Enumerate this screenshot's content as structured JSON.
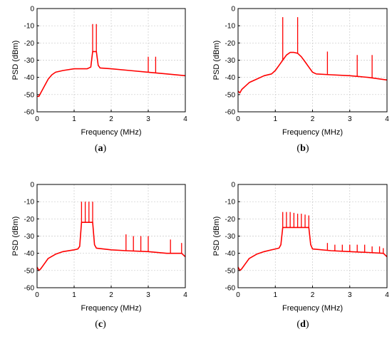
{
  "chart_data": [
    {
      "type": "line",
      "caption_open": "(",
      "caption_letter": "a",
      "caption_close": ")",
      "xlabel": "Frequency (MHz)",
      "ylabel": "PSD (dBm)",
      "xlim": [
        0,
        4
      ],
      "ylim": [
        -60,
        0
      ],
      "xticks": [
        0,
        1,
        2,
        3,
        4
      ],
      "yticks": [
        0,
        -10,
        -20,
        -30,
        -40,
        -50,
        -60
      ],
      "grid": true,
      "color": "#ff0000",
      "baseline": [
        [
          0,
          -51
        ],
        [
          0.05,
          -51
        ],
        [
          0.1,
          -49
        ],
        [
          0.2,
          -45
        ],
        [
          0.3,
          -41
        ],
        [
          0.4,
          -38.5
        ],
        [
          0.5,
          -37
        ],
        [
          0.7,
          -36
        ],
        [
          1.0,
          -35
        ],
        [
          1.35,
          -35
        ],
        [
          1.45,
          -34
        ],
        [
          1.5,
          -25
        ],
        [
          1.6,
          -25
        ],
        [
          1.65,
          -33
        ],
        [
          1.7,
          -34.5
        ],
        [
          2.0,
          -35
        ],
        [
          2.5,
          -36
        ],
        [
          3.0,
          -37
        ],
        [
          3.5,
          -38
        ],
        [
          4.0,
          -39
        ]
      ],
      "spikes": [
        {
          "x": 1.5,
          "y": -9
        },
        {
          "x": 1.6,
          "y": -9
        },
        {
          "x": 3.0,
          "y": -28
        },
        {
          "x": 3.2,
          "y": -28
        }
      ]
    },
    {
      "type": "line",
      "caption_open": "(",
      "caption_letter": "b",
      "caption_close": ")",
      "xlabel": "Frequency (MHz)",
      "ylabel": "PSD (dBm)",
      "xlim": [
        0,
        4
      ],
      "ylim": [
        -60,
        0
      ],
      "xticks": [
        0,
        1,
        2,
        3,
        4
      ],
      "yticks": [
        0,
        -10,
        -20,
        -30,
        -40,
        -50,
        -60
      ],
      "grid": true,
      "color": "#ff0000",
      "baseline": [
        [
          0,
          -48
        ],
        [
          0.05,
          -49
        ],
        [
          0.1,
          -47
        ],
        [
          0.2,
          -45
        ],
        [
          0.3,
          -43
        ],
        [
          0.5,
          -41
        ],
        [
          0.7,
          -39
        ],
        [
          0.9,
          -38
        ],
        [
          1.0,
          -36
        ],
        [
          1.1,
          -33
        ],
        [
          1.2,
          -30
        ],
        [
          1.3,
          -27
        ],
        [
          1.4,
          -25.5
        ],
        [
          1.5,
          -25.5
        ],
        [
          1.6,
          -26
        ],
        [
          1.7,
          -28
        ],
        [
          1.8,
          -31
        ],
        [
          1.9,
          -34
        ],
        [
          2.0,
          -37
        ],
        [
          2.1,
          -38
        ],
        [
          2.5,
          -38.5
        ],
        [
          3.0,
          -39
        ],
        [
          3.5,
          -40
        ],
        [
          4.0,
          -41.5
        ]
      ],
      "spikes": [
        {
          "x": 1.2,
          "y": -5
        },
        {
          "x": 1.6,
          "y": -5
        },
        {
          "x": 2.4,
          "y": -25
        },
        {
          "x": 3.2,
          "y": -27
        },
        {
          "x": 3.6,
          "y": -27
        }
      ]
    },
    {
      "type": "line",
      "caption_open": "(",
      "caption_letter": "c",
      "caption_close": ")",
      "xlabel": "Frequency (MHz)",
      "ylabel": "PSD (dBm)",
      "xlim": [
        0,
        4
      ],
      "ylim": [
        -60,
        0
      ],
      "xticks": [
        0,
        1,
        2,
        3,
        4
      ],
      "yticks": [
        0,
        -10,
        -20,
        -30,
        -40,
        -50,
        -60
      ],
      "grid": true,
      "color": "#ff0000",
      "baseline": [
        [
          0,
          -48
        ],
        [
          0.05,
          -50
        ],
        [
          0.1,
          -49
        ],
        [
          0.2,
          -46
        ],
        [
          0.3,
          -43
        ],
        [
          0.5,
          -40.5
        ],
        [
          0.7,
          -39
        ],
        [
          1.0,
          -38
        ],
        [
          1.1,
          -37.5
        ],
        [
          1.15,
          -36
        ],
        [
          1.2,
          -22
        ],
        [
          1.5,
          -22
        ],
        [
          1.55,
          -35
        ],
        [
          1.6,
          -37
        ],
        [
          2.0,
          -38
        ],
        [
          2.4,
          -38.5
        ],
        [
          3.0,
          -39
        ],
        [
          3.5,
          -40
        ],
        [
          3.9,
          -40
        ],
        [
          4.0,
          -42
        ]
      ],
      "spikes": [
        {
          "x": 1.2,
          "y": -10
        },
        {
          "x": 1.3,
          "y": -10
        },
        {
          "x": 1.4,
          "y": -10
        },
        {
          "x": 1.5,
          "y": -10
        },
        {
          "x": 2.4,
          "y": -29
        },
        {
          "x": 2.6,
          "y": -30
        },
        {
          "x": 2.8,
          "y": -30
        },
        {
          "x": 3.0,
          "y": -30
        },
        {
          "x": 3.6,
          "y": -32
        },
        {
          "x": 3.9,
          "y": -34
        }
      ]
    },
    {
      "type": "line",
      "caption_open": "(",
      "caption_letter": "d",
      "caption_close": ")",
      "xlabel": "Frequency (MHz)",
      "ylabel": "PSD (dBm)",
      "xlim": [
        0,
        4
      ],
      "ylim": [
        -60,
        0
      ],
      "xticks": [
        0,
        1,
        2,
        3,
        4
      ],
      "yticks": [
        0,
        -10,
        -20,
        -30,
        -40,
        -50,
        -60
      ],
      "grid": true,
      "color": "#ff0000",
      "baseline": [
        [
          0,
          -48
        ],
        [
          0.05,
          -50
        ],
        [
          0.1,
          -49
        ],
        [
          0.2,
          -46
        ],
        [
          0.3,
          -43
        ],
        [
          0.5,
          -40.5
        ],
        [
          0.7,
          -39
        ],
        [
          1.0,
          -37.5
        ],
        [
          1.1,
          -37
        ],
        [
          1.15,
          -35
        ],
        [
          1.2,
          -25
        ],
        [
          1.9,
          -25
        ],
        [
          1.95,
          -35
        ],
        [
          2.0,
          -37.5
        ],
        [
          2.5,
          -38.5
        ],
        [
          3.0,
          -39
        ],
        [
          3.5,
          -39.5
        ],
        [
          3.9,
          -40
        ],
        [
          4.0,
          -42
        ]
      ],
      "spikes": [
        {
          "x": 1.2,
          "y": -16
        },
        {
          "x": 1.3,
          "y": -16
        },
        {
          "x": 1.4,
          "y": -16
        },
        {
          "x": 1.5,
          "y": -16.5
        },
        {
          "x": 1.6,
          "y": -17
        },
        {
          "x": 1.7,
          "y": -17
        },
        {
          "x": 1.8,
          "y": -17.5
        },
        {
          "x": 1.9,
          "y": -18
        },
        {
          "x": 2.4,
          "y": -34
        },
        {
          "x": 2.6,
          "y": -35
        },
        {
          "x": 2.8,
          "y": -35
        },
        {
          "x": 3.0,
          "y": -35
        },
        {
          "x": 3.2,
          "y": -35
        },
        {
          "x": 3.4,
          "y": -35
        },
        {
          "x": 3.6,
          "y": -36
        },
        {
          "x": 3.8,
          "y": -36
        },
        {
          "x": 3.9,
          "y": -37
        }
      ]
    }
  ]
}
